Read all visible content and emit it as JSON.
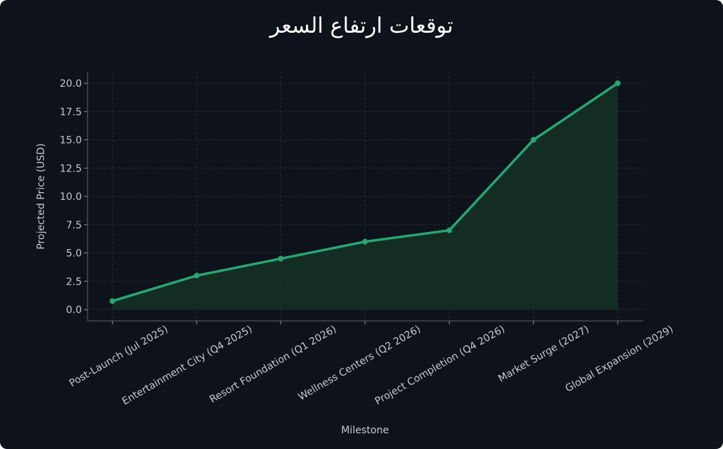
{
  "chart_data": {
    "type": "area",
    "title": "توقعات ارتفاع السعر",
    "xlabel": "Milestone",
    "ylabel": "Projected Price (USD)",
    "categories": [
      "Post-Launch (Jul 2025)",
      "Entertainment City (Q4 2025)",
      "Resort Foundation (Q1 2026)",
      "Wellness Centers (Q2 2026)",
      "Project Completion (Q4 2026)",
      "Market Surge (2027)",
      "Global Expansion (2029)"
    ],
    "values": [
      0.75,
      3.0,
      4.5,
      6.0,
      7.0,
      15.0,
      20.0
    ],
    "ylim": [
      -1.0,
      21.0
    ],
    "yticks": [
      "0.0",
      "2.5",
      "5.0",
      "7.5",
      "10.0",
      "12.5",
      "15.0",
      "17.5",
      "20.0"
    ],
    "grid": true,
    "colors": {
      "line": "#27a572",
      "fill": "#153327",
      "background": "#0e121a"
    }
  }
}
